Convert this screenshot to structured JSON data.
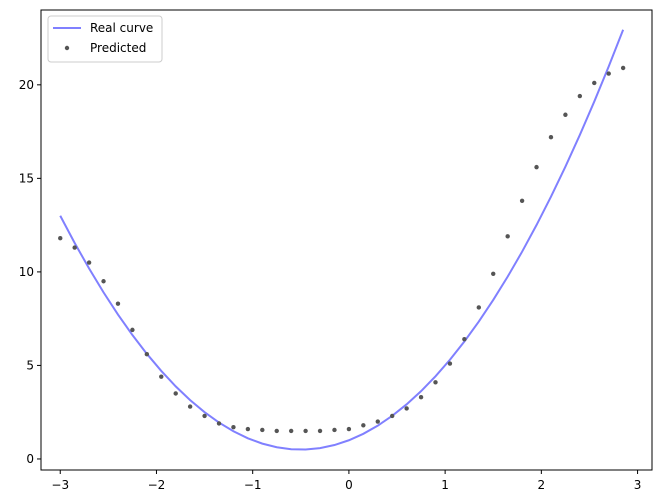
{
  "chart_data": {
    "type": "line",
    "x": [
      -3,
      -2.85,
      -2.7,
      -2.55,
      -2.4,
      -2.25,
      -2.1,
      -1.95,
      -1.8,
      -1.65,
      -1.5,
      -1.35,
      -1.2,
      -1.05,
      -0.9,
      -0.75,
      -0.6,
      -0.45,
      -0.3,
      -0.15,
      0,
      0.15,
      0.3,
      0.45,
      0.6,
      0.75,
      0.9,
      1.05,
      1.2,
      1.35,
      1.5,
      1.65,
      1.8,
      1.95,
      2.1,
      2.25,
      2.4,
      2.55,
      2.7,
      2.85
    ],
    "series": [
      {
        "name": "Real curve",
        "type": "line",
        "color": "#8080ff",
        "values": [
          13,
          11.545,
          10.18,
          8.905,
          7.72,
          6.625,
          5.62,
          4.705,
          3.88,
          3.145,
          2.5,
          1.945,
          1.48,
          1.105,
          0.82,
          0.625,
          0.52,
          0.505,
          0.58,
          0.745,
          1.0,
          1.345,
          1.78,
          2.305,
          2.92,
          3.625,
          4.42,
          5.305,
          6.28,
          7.345,
          8.5,
          9.745,
          11.08,
          12.505,
          14.02,
          15.625,
          17.32,
          19.105,
          20.98,
          22.945
        ]
      },
      {
        "name": "Predicted",
        "type": "scatter",
        "color": "#555555",
        "values": [
          11.8,
          11.3,
          10.5,
          9.5,
          8.3,
          6.9,
          5.6,
          4.4,
          3.5,
          2.8,
          2.3,
          1.9,
          1.7,
          1.6,
          1.55,
          1.5,
          1.5,
          1.5,
          1.5,
          1.55,
          1.6,
          1.8,
          2.0,
          2.3,
          2.7,
          3.3,
          4.1,
          5.1,
          6.4,
          8.1,
          9.9,
          11.9,
          13.8,
          15.6,
          17.2,
          18.4,
          19.4,
          20.1,
          20.6,
          20.9
        ]
      }
    ],
    "xlim": [
      -3.2,
      3.15
    ],
    "ylim": [
      -0.59,
      24.0
    ],
    "xticks": [
      {
        "value": -3,
        "label": "−3"
      },
      {
        "value": -2,
        "label": "−2"
      },
      {
        "value": -1,
        "label": "−1"
      },
      0,
      1,
      2,
      3
    ],
    "yticks": [
      0,
      5,
      10,
      15,
      20
    ],
    "legend": "upper left"
  }
}
